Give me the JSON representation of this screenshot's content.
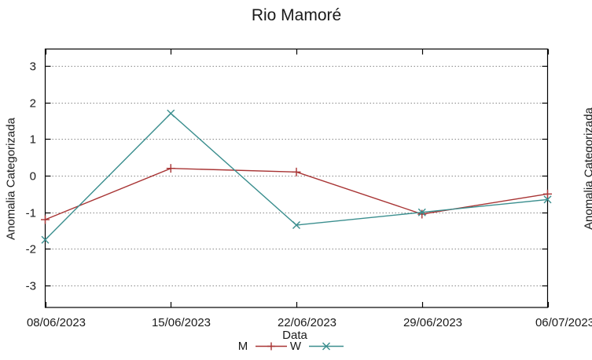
{
  "window": {
    "background": "#ffffff"
  },
  "chart_data": {
    "type": "line",
    "title": "Rio Mamoré",
    "xlabel": "Data",
    "ylabel": "Anomalia Categorizada",
    "categories": [
      "08/06/2023",
      "15/06/2023",
      "22/06/2023",
      "29/06/2023",
      "06/07/2023"
    ],
    "y_ticks": [
      3,
      2,
      1,
      0,
      -1,
      -2,
      -3
    ],
    "ylim": [
      -3.5,
      3.5
    ],
    "grid": "horizontal-dotted",
    "grid_color": "#888888",
    "axis_color": "#000000",
    "legend_position": "bottom-center",
    "series": [
      {
        "name": "M",
        "color": "#a83434",
        "marker": "plus",
        "values": [
          -1.2,
          0.2,
          0.1,
          -1.05,
          -0.5
        ]
      },
      {
        "name": "W",
        "color": "#3a8e8e",
        "marker": "cross",
        "values": [
          -1.75,
          1.7,
          -1.35,
          -1.0,
          -0.65
        ]
      }
    ]
  },
  "second_chart": {
    "ylabel": "Anomalia Categorizada"
  }
}
